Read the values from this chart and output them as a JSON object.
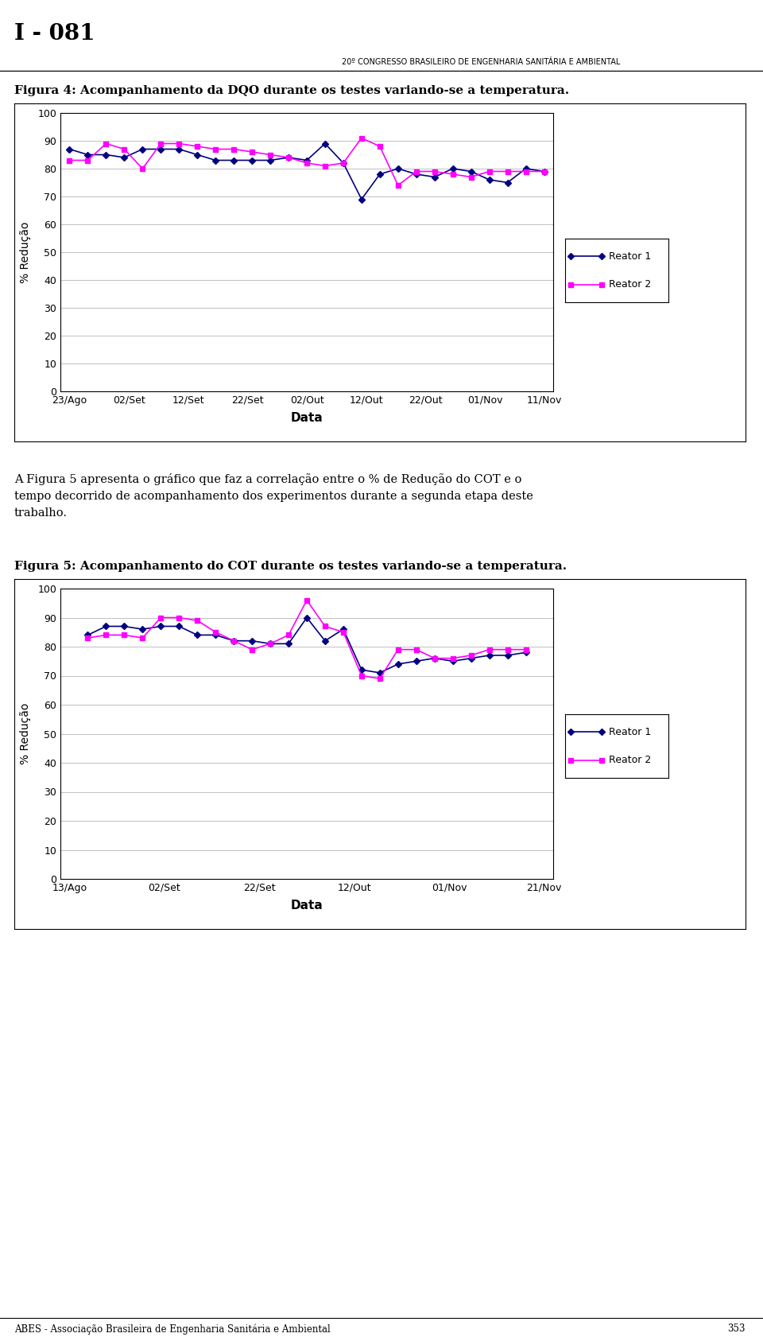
{
  "page_title": "I - 081",
  "congress_text": "20º CONGRESSO BRASILEIRO DE ENGENHARIA SANITÁRIA E AMBIENTAL",
  "footer_text": "ABES - Associação Brasileira de Engenharia Sanitária e Ambiental",
  "footer_page": "353",
  "fig4_title": "Figura 4: Acompanhamento da DQO durante os testes variando-se a temperatura.",
  "fig4_xlabel": "Data",
  "fig4_ylabel": "% Redução",
  "fig4_ylim": [
    0,
    100
  ],
  "fig4_yticks": [
    0,
    10,
    20,
    30,
    40,
    50,
    60,
    70,
    80,
    90,
    100
  ],
  "fig4_xticks": [
    "23/Ago",
    "02/Set",
    "12/Set",
    "22/Set",
    "02/Out",
    "12/Out",
    "22/Out",
    "01/Nov",
    "11/Nov"
  ],
  "fig4_r1": [
    87,
    85,
    85,
    84,
    87,
    87,
    87,
    85,
    83,
    83,
    83,
    83,
    84,
    83,
    89,
    82,
    69,
    78,
    80,
    78,
    77,
    80,
    79,
    76,
    75,
    80,
    79
  ],
  "fig4_r2": [
    83,
    83,
    89,
    87,
    80,
    89,
    89,
    88,
    87,
    87,
    86,
    85,
    84,
    82,
    81,
    82,
    91,
    88,
    74,
    79,
    79,
    78,
    77,
    79,
    79,
    79,
    79
  ],
  "fig4_r1_x": [
    0,
    1,
    2,
    3,
    4,
    5,
    6,
    7,
    8,
    9,
    10,
    11,
    12,
    13,
    14,
    15,
    16,
    17,
    18,
    19,
    20,
    21,
    22,
    23,
    24,
    25,
    26
  ],
  "fig4_r2_x": [
    0,
    1,
    2,
    3,
    4,
    5,
    6,
    7,
    8,
    9,
    10,
    11,
    12,
    13,
    14,
    15,
    16,
    17,
    18,
    19,
    20,
    21,
    22,
    23,
    24,
    25,
    26
  ],
  "fig5_title": "Figura 5: Acompanhamento do COT durante os testes variando-se a temperatura.",
  "fig5_xlabel": "Data",
  "fig5_ylabel": "% Redução",
  "fig5_ylim": [
    0,
    100
  ],
  "fig5_yticks": [
    0,
    10,
    20,
    30,
    40,
    50,
    60,
    70,
    80,
    90,
    100
  ],
  "fig5_xticks": [
    "13/Ago",
    "02/Set",
    "22/Set",
    "12/Out",
    "01/Nov",
    "21/Nov"
  ],
  "fig5_r1": [
    84,
    87,
    87,
    86,
    87,
    87,
    84,
    84,
    82,
    82,
    81,
    81,
    90,
    82,
    86,
    72,
    71,
    74,
    75,
    76,
    75,
    76,
    77,
    77,
    78
  ],
  "fig5_r2": [
    83,
    84,
    84,
    83,
    90,
    90,
    89,
    85,
    82,
    79,
    81,
    84,
    96,
    87,
    85,
    70,
    69,
    79,
    79,
    76,
    76,
    77,
    79,
    79,
    79
  ],
  "fig5_r1_x": [
    1,
    2,
    3,
    4,
    5,
    6,
    7,
    8,
    9,
    10,
    11,
    12,
    13,
    14,
    15,
    16,
    17,
    18,
    19,
    20,
    21,
    22,
    23,
    24,
    25
  ],
  "fig5_r2_x": [
    1,
    2,
    3,
    4,
    5,
    6,
    7,
    8,
    9,
    10,
    11,
    12,
    13,
    14,
    15,
    16,
    17,
    18,
    19,
    20,
    21,
    22,
    23,
    24,
    25
  ],
  "color_r1": "#000080",
  "color_r2": "#FF00FF",
  "bg_color": "#FFFFFF",
  "plot_bg": "#FFFFFF",
  "grid_color": "#C0C0C0",
  "text_body_line1": "A Figura 5 apresenta o gráfico que faz a correlação entre o % de Redução do COT e o",
  "text_body_line2": "tempo decorrido de acompanhamento dos experimentos durante a segunda etapa deste",
  "text_body_line3": "trabalho.",
  "legend_r1": "Reator 1",
  "legend_r2": "Reator 2"
}
